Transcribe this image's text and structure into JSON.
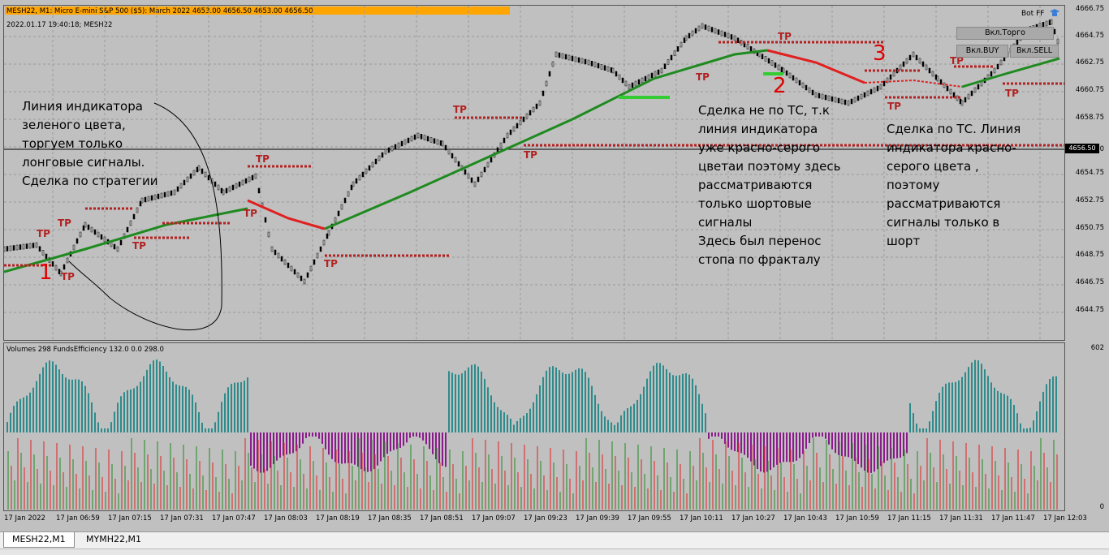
{
  "header": {
    "title": "MESH22, M1:  Micro E-mini S&P 500 ($5): March 2022  4653.00 4656.50 4653.00 4656.50",
    "date_line": "2022.01.17 19:40:18; MESH22",
    "bot": "Bot FF"
  },
  "price_axis": {
    "labels": [
      "4666.75",
      "4664.75",
      "4662.75",
      "4660.75",
      "4658.75",
      "4656.50",
      "4654.75",
      "4652.75",
      "4650.75",
      "4648.75",
      "4646.75",
      "4644.75"
    ],
    "current": "4656.50"
  },
  "volume_pane": {
    "title": "Volumes 298 FundsEfficiency 132.0 0.0 298.0",
    "axis_top": "602",
    "axis_bottom": "0"
  },
  "time_axis": [
    "17 Jan 2022",
    "17 Jan 06:59",
    "17 Jan 07:15",
    "17 Jan 07:31",
    "17 Jan 07:47",
    "17 Jan 08:03",
    "17 Jan 08:19",
    "17 Jan 08:35",
    "17 Jan 08:51",
    "17 Jan 09:07",
    "17 Jan 09:23",
    "17 Jan 09:39",
    "17 Jan 09:55",
    "17 Jan 10:11",
    "17 Jan 10:27",
    "17 Jan 10:43",
    "17 Jan 10:59",
    "17 Jan 11:15",
    "17 Jan 11:31",
    "17 Jan 11:47",
    "17 Jan 12:03"
  ],
  "buttons": {
    "trade": "Вкл.Торго",
    "buy": "Вкл.BUY",
    "sell": "Вкл.SELL"
  },
  "annotations": {
    "left": "Линия индикатора\nзеленого цвета,\nторгуем только\nлонговые сигналы.\nСделка по стратегии",
    "middle": "Сделка не по ТС, т.к\nлиния индикатора\nуже красно-серого\nцветаи поэтому здесь\nрассматриваются\nтолько шортовые\nсигналы\n Здесь был перенос\n стопа по фракталу",
    "right": "Сделка по ТС. Линия\nиндикатора красно-\nсерого цвета ,\nпоэтому\nрассматриваются\nсигналы только в\nшорт",
    "num1": "1",
    "num2": "2",
    "num3": "3"
  },
  "tp_label": "TP",
  "tabs": [
    "MESH22,M1",
    "MYMH22,M1"
  ],
  "colors": {
    "background": "#c0c0c0",
    "header_bar": "#ffa500",
    "indicator_green": "#1f8a1f",
    "indicator_red": "#e02020",
    "tp_dots": "#b22222",
    "volume_teal": "#2e8b8b",
    "volume_magenta": "#8b1a8b",
    "annotation_red": "#e00000"
  }
}
